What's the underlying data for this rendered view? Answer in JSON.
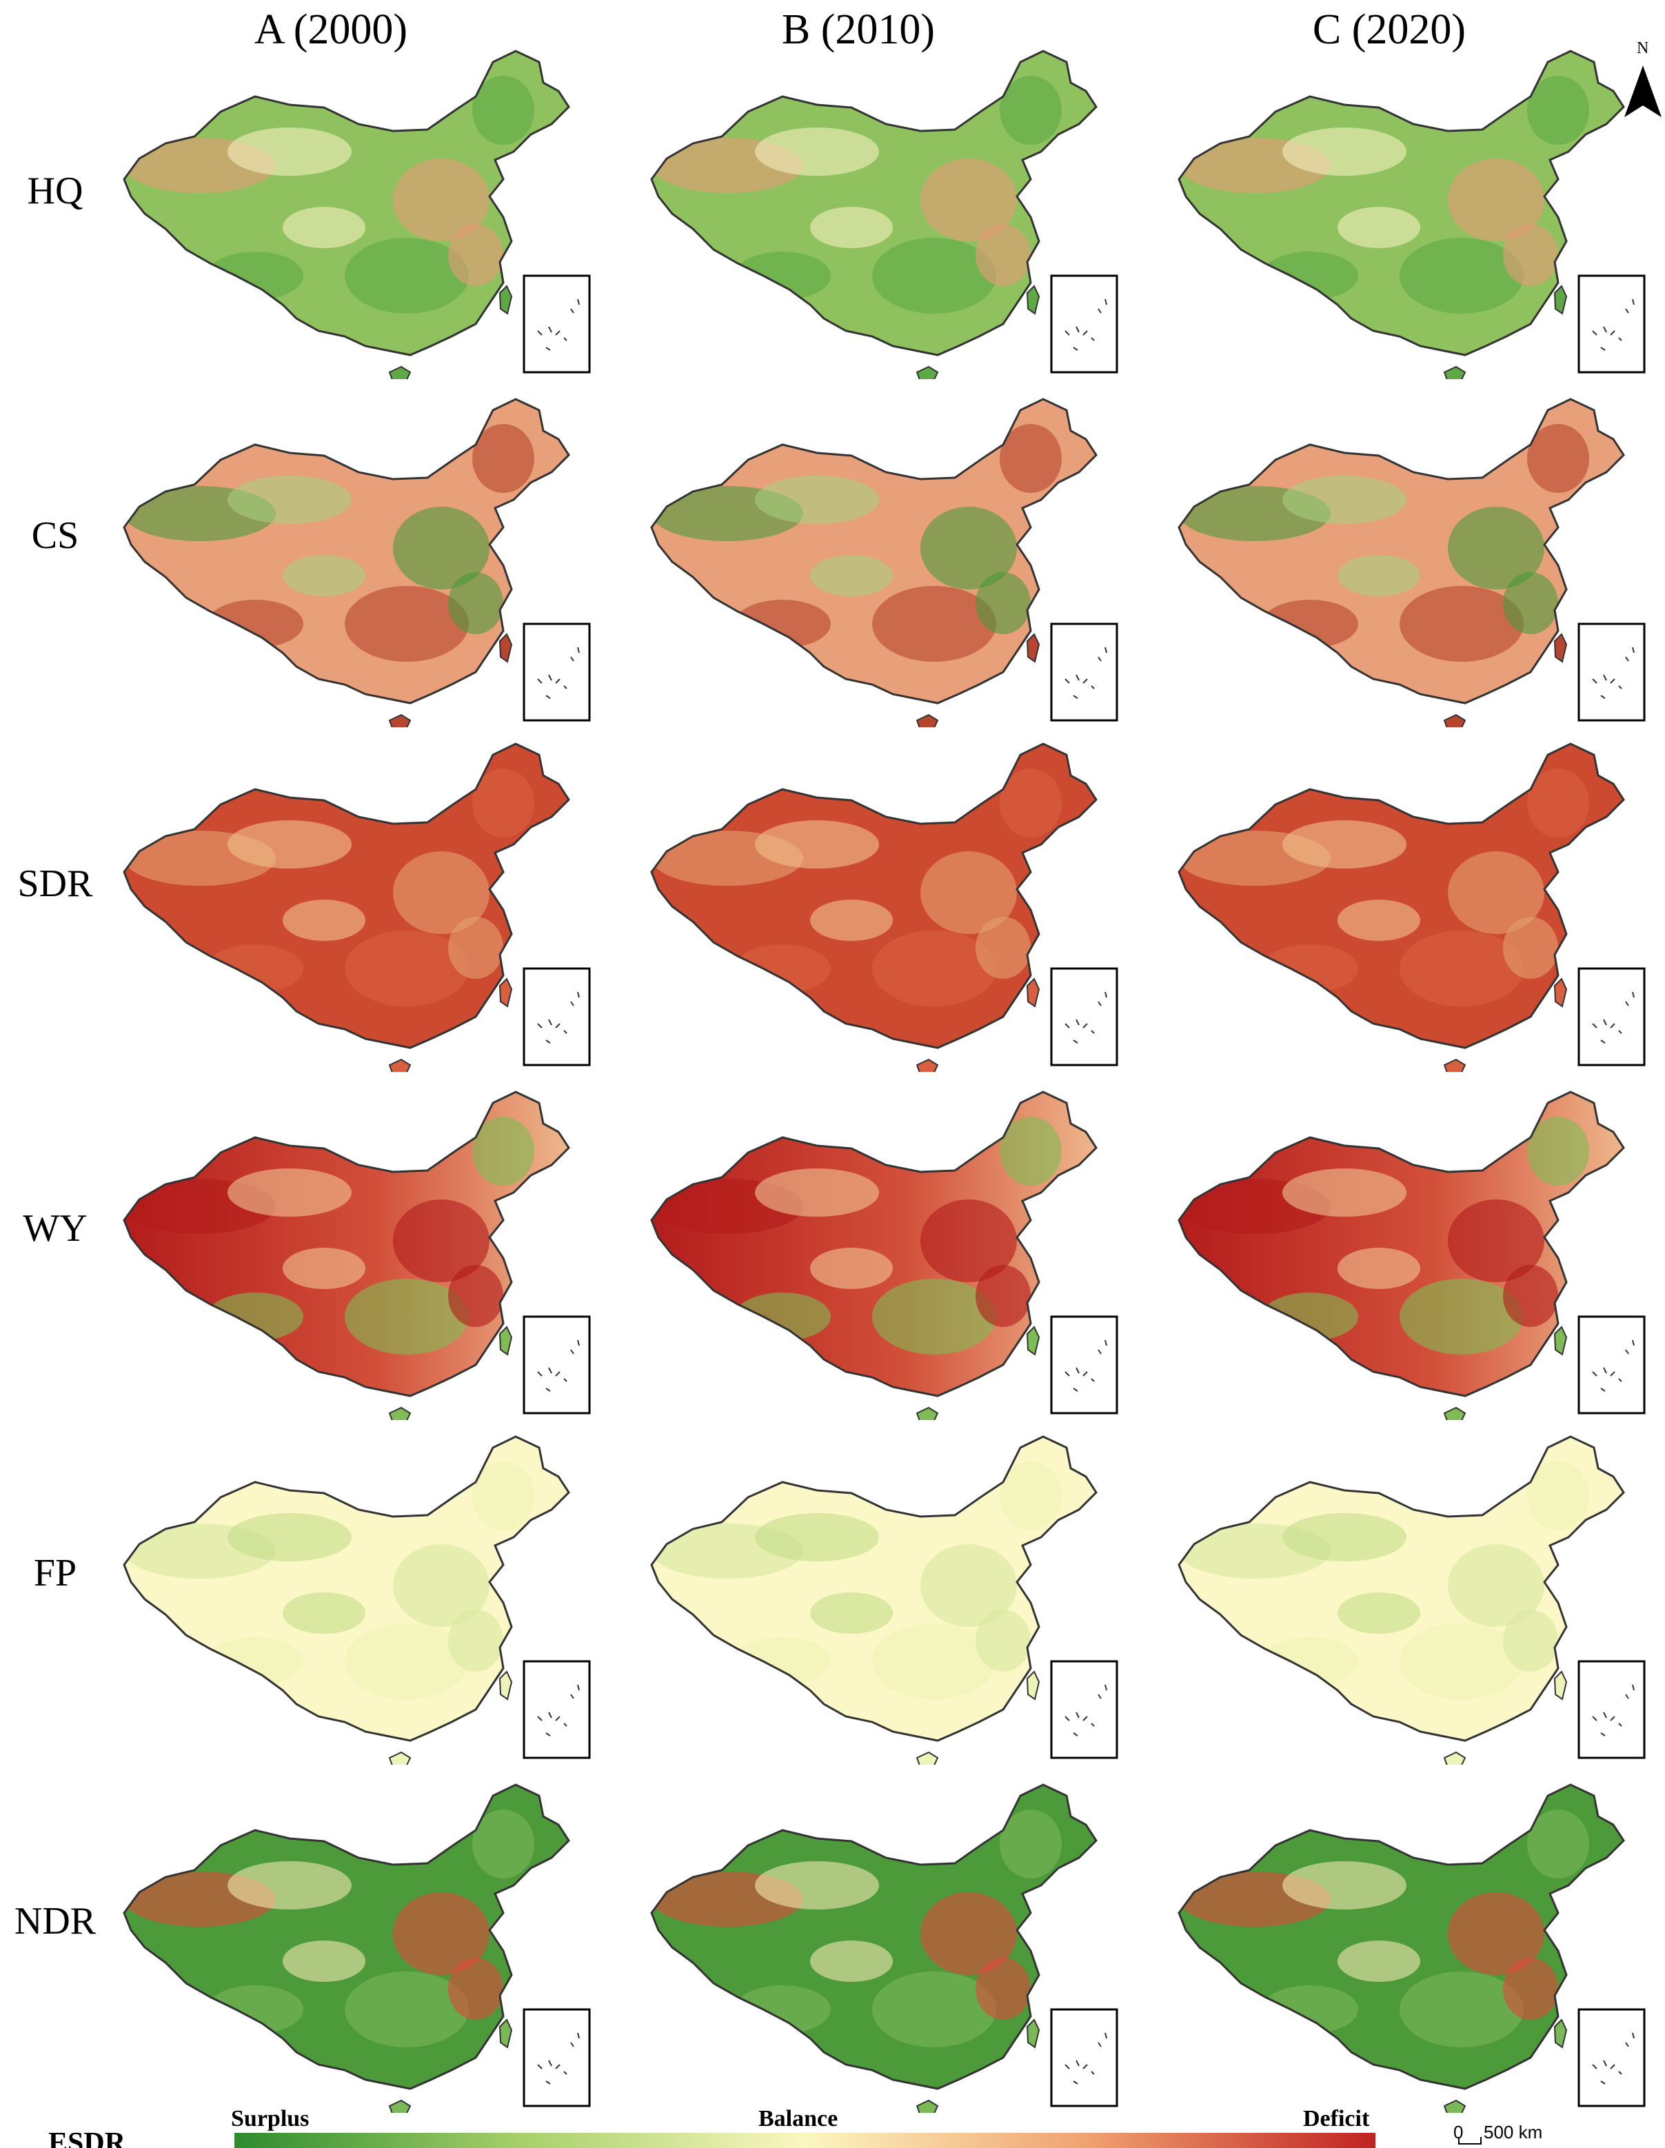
{
  "columns": [
    "A (2000)",
    "B (2010)",
    "C (2020)"
  ],
  "rows": [
    {
      "label": "HQ",
      "base": "#8fc25e",
      "blotch": [
        "#e89a78",
        "#f5eec0",
        "#5ea845"
      ]
    },
    {
      "label": "CS",
      "base": "#e8a07a",
      "blotch": [
        "#4d9a3a",
        "#a9cf80",
        "#b8452f"
      ]
    },
    {
      "label": "SDR",
      "base": "#cc4a30",
      "blotch": [
        "#e4a070",
        "#f0c28e",
        "#d86040"
      ]
    },
    {
      "label": "WY",
      "base": "#d2503a",
      "blotch": [
        "#b31b1b",
        "#f2c496",
        "#7fbd54"
      ]
    },
    {
      "label": "FP",
      "base": "#fbf7c6",
      "blotch": [
        "#d8e8a0",
        "#c4dd8a",
        "#eef3b8"
      ]
    },
    {
      "label": "NDR",
      "base": "#4d9a3a",
      "blotch": [
        "#e04a3a",
        "#f2e8b0",
        "#7ab858"
      ]
    }
  ],
  "north_label": "N",
  "legend": {
    "title": "ESDR",
    "low_label": "Surplus",
    "mid_label": "Balance",
    "high_label": "Deficit",
    "colors": [
      "#2e8b2e",
      "#a6d06a",
      "#fbf7c0",
      "#f0a070",
      "#c02222"
    ]
  },
  "scale": {
    "zero": "0",
    "distance": "500 km"
  }
}
